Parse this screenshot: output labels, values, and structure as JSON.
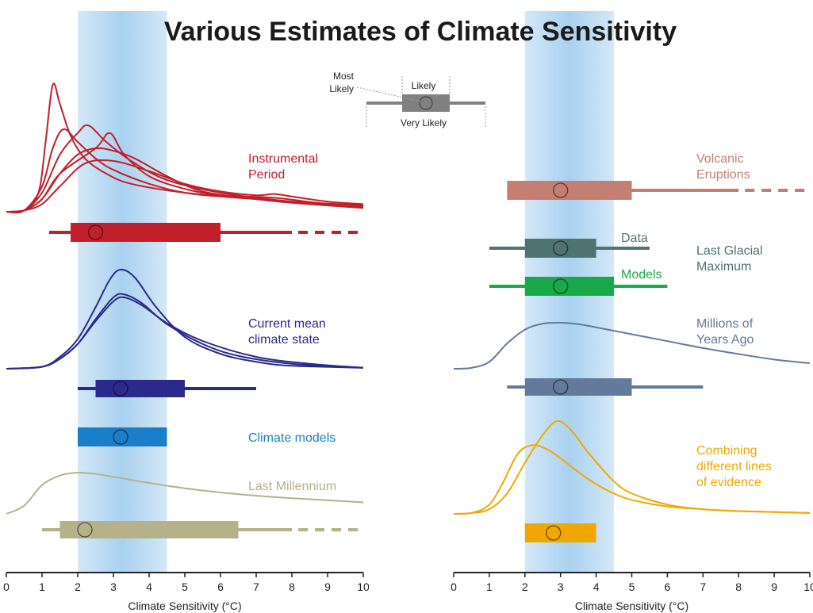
{
  "chart_data": {
    "type": "line",
    "title": "Various Estimates of Climate Sensitivity",
    "xlabel": "Climate Sensitivity (°C)",
    "xlim": [
      0,
      10
    ],
    "xticks": [
      "0",
      "1",
      "2",
      "3",
      "4",
      "5",
      "6",
      "7",
      "8",
      "9",
      "10"
    ],
    "likely_band": [
      2,
      4.5
    ],
    "legend": {
      "most_likely": "Most Likely",
      "likely": "Likely",
      "very_likely": "Very Likely",
      "likely_range": [
        1.5,
        3.5
      ],
      "very_likely_range": [
        0,
        5
      ],
      "most_likely_value": 2.5,
      "color": "#808080"
    },
    "panels": [
      {
        "estimates": [
          {
            "label": "Instrumental Period",
            "color": "#c0202a",
            "likely": [
              1.8,
              6
            ],
            "very_likely": [
              1.2,
              8
            ],
            "most_likely": 2.5,
            "dashed_to": 10,
            "curves": [
              {
                "x": [
                  0,
                  0.5,
                  0.9,
                  1.1,
                  1.3,
                  1.5,
                  1.8,
                  2.2,
                  2.8,
                  3.5,
                  5,
                  7,
                  8,
                  9,
                  10
                ],
                "y": [
                  0,
                  0.01,
                  0.15,
                  0.55,
                  1,
                  0.85,
                  0.6,
                  0.42,
                  0.3,
                  0.22,
                  0.15,
                  0.1,
                  0.08,
                  0.06,
                  0.05
                ]
              },
              {
                "x": [
                  0,
                  0.5,
                  1,
                  1.3,
                  1.6,
                  2,
                  2.5,
                  3,
                  4,
                  5,
                  6,
                  7,
                  8,
                  10
                ],
                "y": [
                  0,
                  0.01,
                  0.2,
                  0.5,
                  0.65,
                  0.55,
                  0.42,
                  0.33,
                  0.22,
                  0.15,
                  0.12,
                  0.1,
                  0.08,
                  0.05
                ]
              },
              {
                "x": [
                  0,
                  0.5,
                  1,
                  1.5,
                  2,
                  2.3,
                  2.8,
                  3.5,
                  4.5,
                  6,
                  8,
                  10
                ],
                "y": [
                  0,
                  0.01,
                  0.15,
                  0.45,
                  0.62,
                  0.68,
                  0.55,
                  0.4,
                  0.25,
                  0.15,
                  0.08,
                  0.04
                ]
              },
              {
                "x": [
                  0,
                  0.5,
                  1,
                  1.5,
                  2.5,
                  2.9,
                  3.3,
                  4,
                  5,
                  6,
                  7.5,
                  9,
                  10
                ],
                "y": [
                  0,
                  0.01,
                  0.1,
                  0.3,
                  0.5,
                  0.62,
                  0.45,
                  0.28,
                  0.18,
                  0.13,
                  0.11,
                  0.06,
                  0.04
                ]
              },
              {
                "x": [
                  0,
                  0.5,
                  1,
                  1.5,
                  2,
                  2.5,
                  3,
                  3.6,
                  4.5,
                  5.5,
                  7,
                  8,
                  10
                ],
                "y": [
                  0,
                  0.01,
                  0.1,
                  0.3,
                  0.45,
                  0.5,
                  0.48,
                  0.42,
                  0.28,
                  0.16,
                  0.1,
                  0.07,
                  0.03
                ]
              },
              {
                "x": [
                  0,
                  0.5,
                  1,
                  1.5,
                  2.2,
                  3,
                  4,
                  5,
                  6,
                  7,
                  7.5,
                  8,
                  9,
                  10
                ],
                "y": [
                  0,
                  0.01,
                  0.06,
                  0.2,
                  0.38,
                  0.4,
                  0.32,
                  0.22,
                  0.16,
                  0.13,
                  0.14,
                  0.12,
                  0.08,
                  0.06
                ]
              }
            ]
          },
          {
            "label": "Current mean climate state",
            "color": "#2b2a8c",
            "likely": [
              2.5,
              5
            ],
            "very_likely": [
              2,
              7
            ],
            "most_likely": 3.2,
            "curves": [
              {
                "x": [
                  0,
                  1,
                  1.5,
                  2,
                  2.5,
                  2.9,
                  3.2,
                  3.6,
                  4.2,
                  5,
                  6,
                  7,
                  8,
                  10
                ],
                "y": [
                  0,
                  0.02,
                  0.12,
                  0.3,
                  0.62,
                  0.9,
                  1,
                  0.92,
                  0.62,
                  0.32,
                  0.15,
                  0.07,
                  0.03,
                  0.01
                ]
              },
              {
                "x": [
                  0,
                  1,
                  1.5,
                  2,
                  2.5,
                  3,
                  3.3,
                  3.8,
                  4.5,
                  5.5,
                  6.5,
                  8,
                  10
                ],
                "y": [
                  0,
                  0.02,
                  0.1,
                  0.25,
                  0.5,
                  0.72,
                  0.75,
                  0.66,
                  0.45,
                  0.25,
                  0.13,
                  0.05,
                  0.01
                ]
              },
              {
                "x": [
                  0,
                  1,
                  1.5,
                  2,
                  2.5,
                  3,
                  3.3,
                  3.8,
                  4.5,
                  5.5,
                  7,
                  8.5,
                  10
                ],
                "y": [
                  0,
                  0.02,
                  0.1,
                  0.25,
                  0.48,
                  0.68,
                  0.72,
                  0.64,
                  0.46,
                  0.28,
                  0.12,
                  0.05,
                  0.01
                ]
              }
            ]
          },
          {
            "label": "Climate models",
            "color": "#1a7fc8",
            "likely": [
              2,
              4.5
            ],
            "most_likely": 3.2
          },
          {
            "label": "Last Millennium",
            "color": "#b5b28a",
            "likely": [
              1.5,
              6.5
            ],
            "very_likely": [
              1,
              8
            ],
            "most_likely": 2.2,
            "dashed_to": 10,
            "curves": [
              {
                "x": [
                  0,
                  0.5,
                  1,
                  1.5,
                  2,
                  2.5,
                  3,
                  4,
                  5,
                  6,
                  7,
                  8,
                  9,
                  10
                ],
                "y": [
                  0,
                  0.2,
                  0.7,
                  0.93,
                  1,
                  0.97,
                  0.9,
                  0.75,
                  0.62,
                  0.52,
                  0.44,
                  0.38,
                  0.33,
                  0.28
                ]
              }
            ]
          }
        ]
      },
      {
        "estimates": [
          {
            "label": "Volcanic Eruptions",
            "color": "#c47f72",
            "likely": [
              1.5,
              5
            ],
            "very_likely": [
              1.5,
              8
            ],
            "most_likely": 3,
            "dashed_to": 10
          },
          {
            "label": "Last Glacial Maximum",
            "sublabel": "Data",
            "color": "#4f7370",
            "likely": [
              2,
              4
            ],
            "very_likely": [
              1,
              5.5
            ],
            "most_likely": 3
          },
          {
            "sublabel": "Models",
            "color": "#19a84a",
            "likely": [
              2,
              4.5
            ],
            "very_likely": [
              1,
              6
            ],
            "most_likely": 3
          },
          {
            "label": "Millions of Years Ago",
            "color": "#637a9c",
            "likely": [
              2,
              5
            ],
            "very_likely": [
              1.5,
              7
            ],
            "most_likely": 3,
            "curves": [
              {
                "x": [
                  0,
                  0.5,
                  1,
                  1.5,
                  2,
                  2.5,
                  3,
                  3.5,
                  4,
                  5,
                  6,
                  7,
                  8,
                  9,
                  10
                ],
                "y": [
                  0,
                  0.02,
                  0.15,
                  0.55,
                  0.85,
                  0.98,
                  1,
                  0.97,
                  0.9,
                  0.75,
                  0.6,
                  0.45,
                  0.32,
                  0.2,
                  0.12
                ]
              }
            ]
          },
          {
            "label": "Combining different lines of evidence",
            "color": "#f0a800",
            "likely": [
              2,
              4
            ],
            "most_likely": 2.8,
            "curves": [
              {
                "x": [
                  0,
                  0.5,
                  1,
                  1.5,
                  2,
                  2.5,
                  2.9,
                  3.3,
                  3.8,
                  4.5,
                  5,
                  6,
                  7,
                  8,
                  10
                ],
                "y": [
                  0,
                  0.01,
                  0.05,
                  0.22,
                  0.55,
                  0.85,
                  1,
                  0.9,
                  0.65,
                  0.35,
                  0.22,
                  0.1,
                  0.05,
                  0.03,
                  0.01
                ]
              },
              {
                "x": [
                  0,
                  0.5,
                  1,
                  1.4,
                  1.8,
                  2.2,
                  2.6,
                  3,
                  3.5,
                  4,
                  4.5,
                  5,
                  6,
                  7,
                  8,
                  10
                ],
                "y": [
                  0,
                  0.01,
                  0.1,
                  0.35,
                  0.65,
                  0.74,
                  0.7,
                  0.6,
                  0.45,
                  0.32,
                  0.22,
                  0.15,
                  0.08,
                  0.05,
                  0.03,
                  0.01
                ]
              }
            ]
          }
        ]
      }
    ]
  }
}
